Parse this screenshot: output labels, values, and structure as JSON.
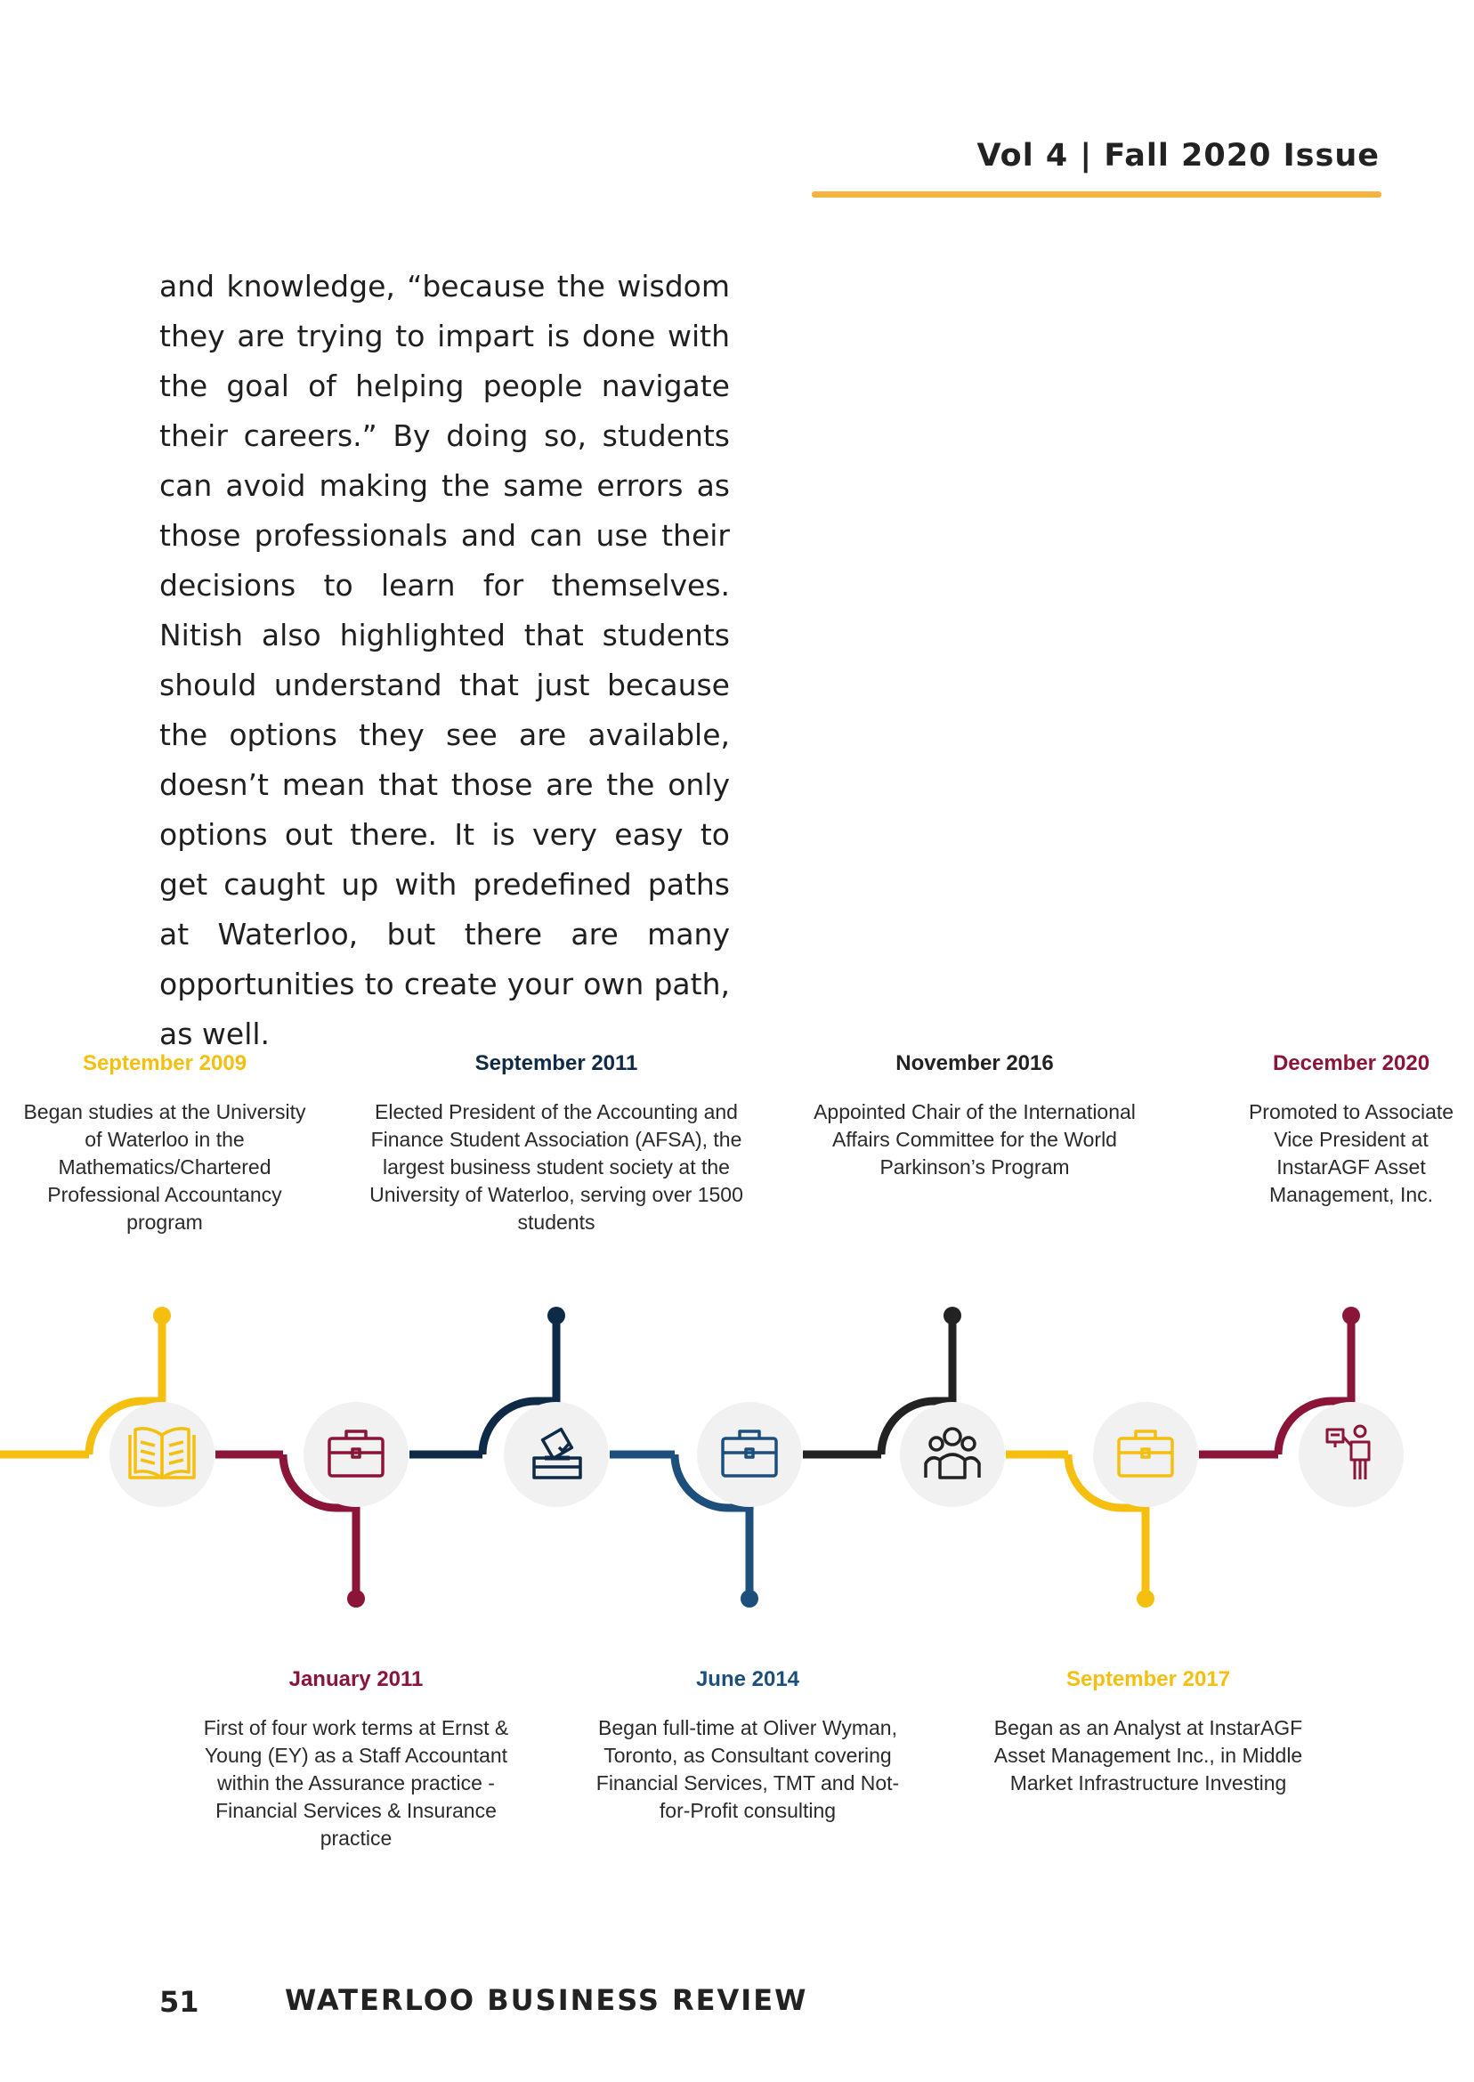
{
  "header": {
    "issue": "Vol 4 | Fall 2020 Issue"
  },
  "article": {
    "paragraph": "and knowledge, “because the wisdom they are trying to impart is done with the goal of helping people navigate their careers.” By doing so, students can avoid making the same errors as those professionals and can use their decisions to learn for themselves. Nitish also highlighted that students should understand that just because the options they see are available, doesn’t mean that those are the only options out there. It is very easy to get caught up with predefined paths at Waterloo, but there are many opportunities to create your own path, as well."
  },
  "colors": {
    "yellow": "#f5bf0f",
    "maroon": "#8a1538",
    "navy": "#0e2a47",
    "blue": "#1d4f7c",
    "black": "#222222",
    "header_rule": "#f3b53f",
    "icon_circle": "#f1f1f1"
  },
  "timeline": {
    "events": [
      {
        "date": "September 2009",
        "description": "Began studies at the University of Waterloo in the Mathematics/Chartered Professional Accountancy program",
        "color": "#f5bf0f",
        "icon": "book-icon",
        "position": "top"
      },
      {
        "date": "January 2011",
        "description": "First of four work terms at Ernst & Young (EY) as a Staff Accountant within the Assurance practice - Financial Services & Insurance practice",
        "color": "#8a1538",
        "icon": "briefcase-icon",
        "position": "bottom"
      },
      {
        "date": "September 2011",
        "description": "Elected President of the Accounting and Finance Student Association (AFSA), the largest business student society at the University of Waterloo, serving over 1500 students",
        "color": "#0e2a47",
        "icon": "ballot-box-icon",
        "position": "top"
      },
      {
        "date": "June 2014",
        "description": "Began full-time at Oliver Wyman, Toronto, as Consultant covering Financial Services, TMT and Not-for-Profit consulting",
        "color": "#1d4f7c",
        "icon": "briefcase-icon",
        "position": "bottom"
      },
      {
        "date": "November 2016",
        "description": "Appointed Chair of the International Affairs Committee for the World Parkinson’s Program",
        "color": "#222222",
        "icon": "group-icon",
        "position": "top"
      },
      {
        "date": "September 2017",
        "description": "Began as an Analyst at InstarAGF Asset Management Inc., in Middle Market Infrastructure Investing",
        "color": "#f5bf0f",
        "icon": "briefcase-icon",
        "position": "bottom"
      },
      {
        "date": "December 2020",
        "description": "Promoted to Associate Vice President at InstarAGF Asset Management, Inc.",
        "color": "#8a1538",
        "icon": "presenter-icon",
        "position": "top"
      }
    ]
  },
  "footer": {
    "page_number": "51",
    "publication": "WATERLOO BUSINESS REVIEW"
  }
}
